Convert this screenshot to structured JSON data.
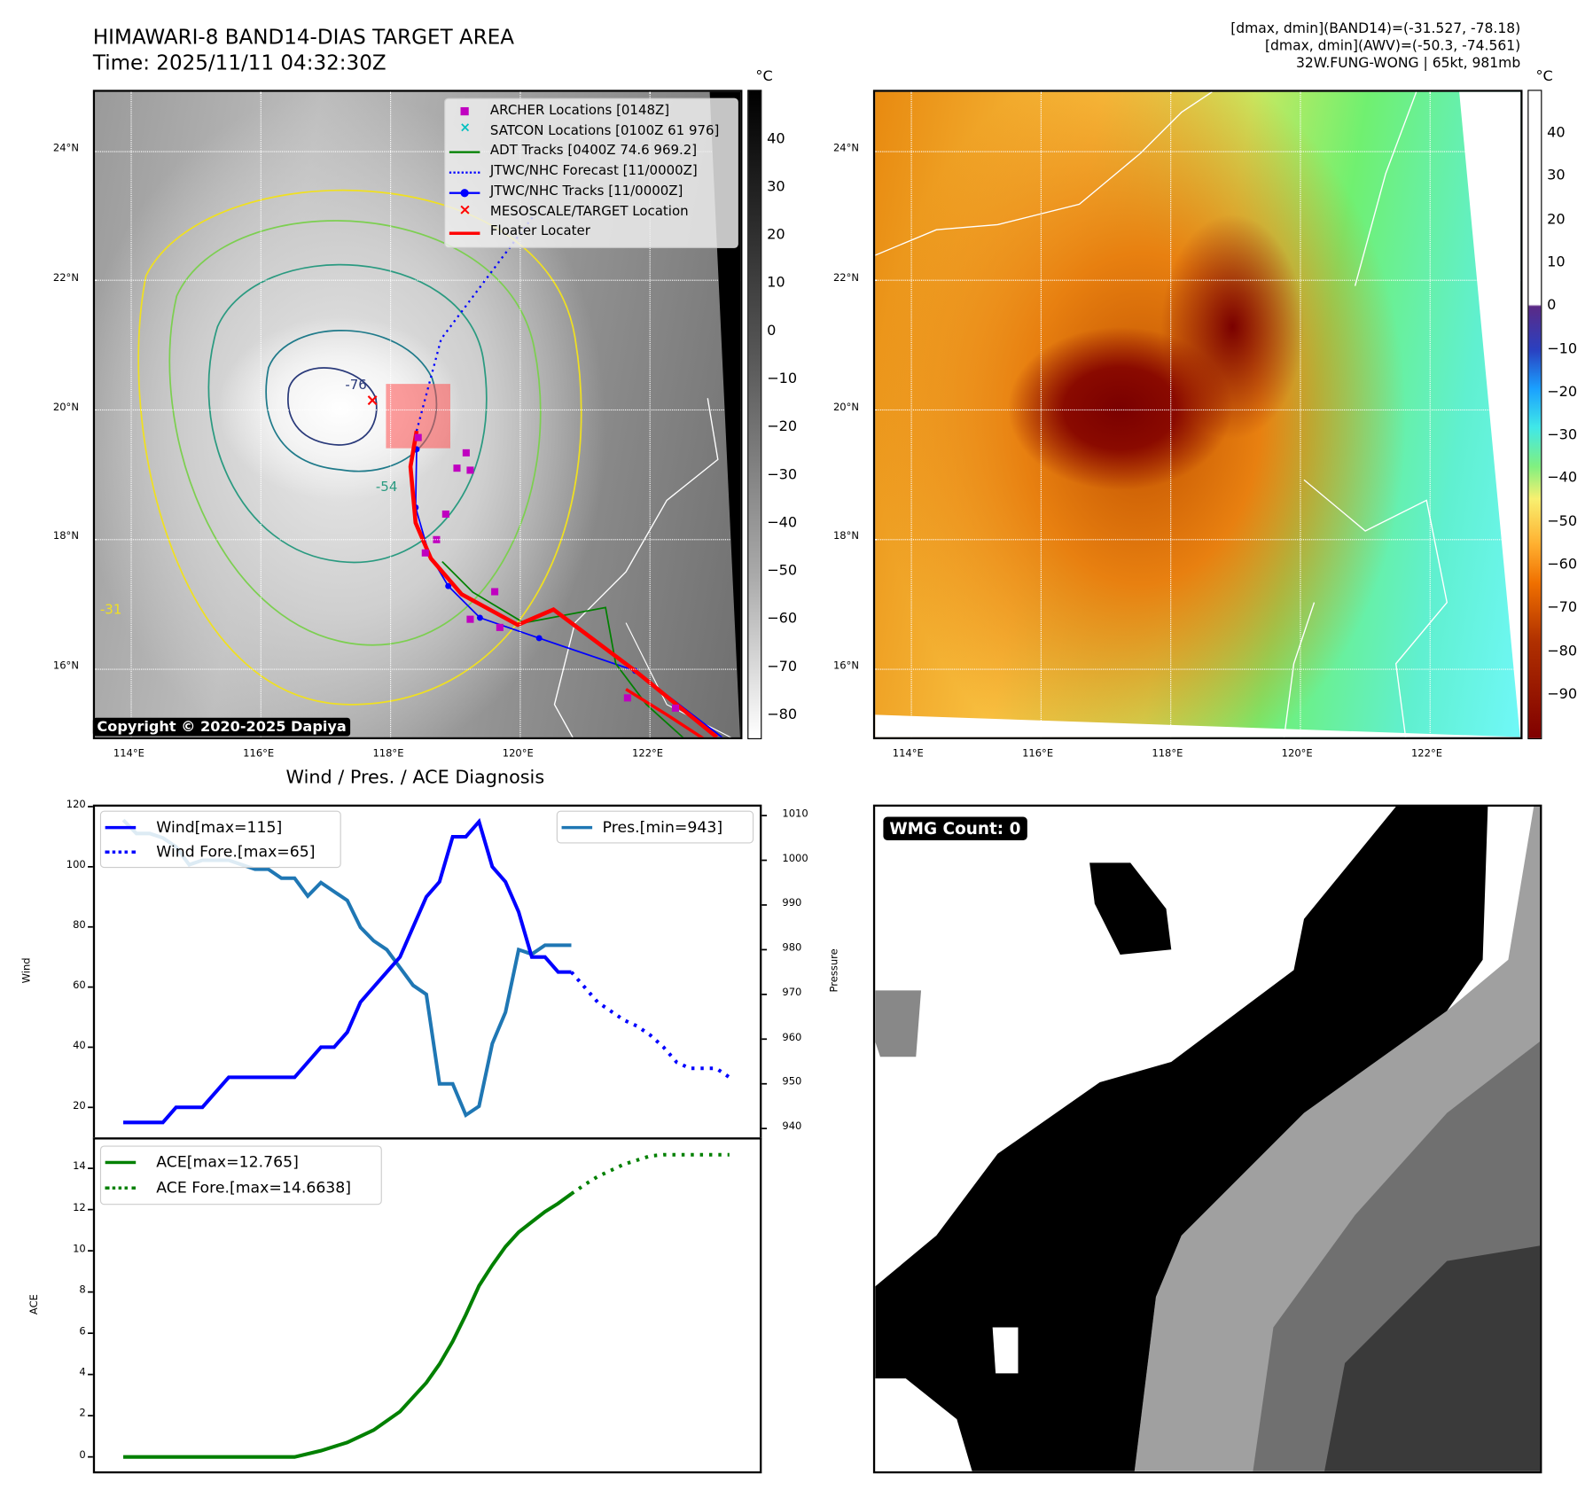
{
  "header": {
    "title": "HIMAWARI-8 BAND14-DIAS TARGET AREA",
    "time": "Time: 2025/11/11 04:32:30Z",
    "info_line1": "[dmax, dmin](BAND14)=(-31.527, -78.18)",
    "info_line2": "[dmax, dmin](AWV)=(-50.3, -74.561)",
    "info_line3": "32W.FUNG-WONG | 65kt, 981mb"
  },
  "maps": {
    "lat_labels": [
      "24°N",
      "22°N",
      "20°N",
      "18°N",
      "16°N"
    ],
    "lon_labels": [
      "114°E",
      "116°E",
      "118°E",
      "120°E",
      "122°E"
    ],
    "colorbar_unit": "°C",
    "left_colorbar_ticks": [
      "40",
      "30",
      "20",
      "10",
      "0",
      "−10",
      "−20",
      "−30",
      "−40",
      "−50",
      "−60",
      "−70",
      "−80"
    ],
    "right_colorbar_ticks": [
      "40",
      "30",
      "20",
      "10",
      "0",
      "−10",
      "−20",
      "−30",
      "−40",
      "−50",
      "−60",
      "−70",
      "−80",
      "−90"
    ],
    "copyright": "Copyright © 2020-2025 Dapiya",
    "contour_labels": [
      "-76",
      "-54",
      "-31"
    ],
    "legend": [
      {
        "label": "ARCHER Locations [0148Z]",
        "color": "#c000c0",
        "symbol": "square"
      },
      {
        "label": "SATCON Locations [0100Z 61 976]",
        "color": "#00c0c0",
        "symbol": "x"
      },
      {
        "label": "ADT Tracks [0400Z 74.6 969.2]",
        "color": "#008000",
        "symbol": "line"
      },
      {
        "label": "JTWC/NHC Forecast [11/0000Z]",
        "color": "#0000ff",
        "symbol": "dotted"
      },
      {
        "label": "JTWC/NHC Tracks [11/0000Z]",
        "color": "#0000ff",
        "symbol": "line-dot"
      },
      {
        "label": "MESOSCALE/TARGET Location",
        "color": "#ff0000",
        "symbol": "x"
      },
      {
        "label": "Floater Locater",
        "color": "#ff0000",
        "symbol": "line"
      }
    ]
  },
  "chart_data": [
    {
      "type": "line",
      "title": "Wind / Pres. / ACE Diagnosis",
      "ylabel": "Wind",
      "y2label": "Pressure",
      "ylim": [
        10,
        120
      ],
      "y2lim": [
        938,
        1012
      ],
      "xlim": [
        -2.15,
        48.3
      ],
      "yticks": [
        "20",
        "40",
        "60",
        "80",
        "100",
        "120"
      ],
      "y2ticks": [
        "940",
        "950",
        "960",
        "970",
        "980",
        "990",
        "1000",
        "1010"
      ],
      "series": [
        {
          "name": "Wind[max=115]",
          "color": "#0000ff",
          "style": "solid",
          "axis": "left",
          "points": [
            [
              0,
              15
            ],
            [
              3,
              15
            ],
            [
              4,
              20
            ],
            [
              6,
              20
            ],
            [
              8,
              30
            ],
            [
              13,
              30
            ],
            [
              15,
              40
            ],
            [
              16,
              40
            ],
            [
              17,
              45
            ],
            [
              18,
              55
            ],
            [
              19,
              60
            ],
            [
              20,
              65
            ],
            [
              21,
              70
            ],
            [
              22,
              80
            ],
            [
              23,
              90
            ],
            [
              24,
              95
            ],
            [
              25,
              110
            ],
            [
              26,
              110
            ],
            [
              27,
              115
            ],
            [
              28,
              100
            ],
            [
              29,
              95
            ],
            [
              30,
              85
            ],
            [
              31,
              70
            ],
            [
              32,
              70
            ],
            [
              33,
              65
            ],
            [
              34,
              65
            ]
          ]
        },
        {
          "name": "Wind Fore.[max=65]",
          "color": "#0000ff",
          "style": "dotted",
          "axis": "left",
          "points": [
            [
              34,
              65
            ],
            [
              35,
              60
            ],
            [
              36,
              55
            ],
            [
              37,
              52
            ],
            [
              38,
              49
            ],
            [
              39,
              47
            ],
            [
              40,
              44
            ],
            [
              41,
              40
            ],
            [
              42,
              35
            ],
            [
              43,
              33
            ],
            [
              44,
              33
            ],
            [
              45,
              33
            ],
            [
              46,
              30
            ]
          ]
        },
        {
          "name": "Pres.[min=943]",
          "color": "#1f77b4",
          "style": "solid",
          "axis": "right",
          "points": [
            [
              0,
              1009
            ],
            [
              1,
              1006
            ],
            [
              2,
              1006
            ],
            [
              3,
              1005
            ],
            [
              4,
              1003
            ],
            [
              5,
              999
            ],
            [
              6,
              1000
            ],
            [
              7,
              1000
            ],
            [
              8,
              1000
            ],
            [
              9,
              999
            ],
            [
              10,
              998
            ],
            [
              11,
              998
            ],
            [
              12,
              996
            ],
            [
              13,
              996
            ],
            [
              14,
              992
            ],
            [
              15,
              995
            ],
            [
              16,
              993
            ],
            [
              17,
              991
            ],
            [
              18,
              985
            ],
            [
              19,
              982
            ],
            [
              20,
              980
            ],
            [
              21,
              976
            ],
            [
              22,
              972
            ],
            [
              23,
              970
            ],
            [
              24,
              950
            ],
            [
              25,
              950
            ],
            [
              26,
              943
            ],
            [
              27,
              945
            ],
            [
              28,
              959
            ],
            [
              29,
              966
            ],
            [
              30,
              980
            ],
            [
              31,
              979
            ],
            [
              32,
              981
            ],
            [
              34,
              981
            ]
          ]
        }
      ]
    },
    {
      "type": "line",
      "ylabel": "ACE",
      "ylim": [
        -0.7,
        15.4
      ],
      "xlim": [
        -2.15,
        48.3
      ],
      "yticks": [
        "0",
        "2",
        "4",
        "6",
        "8",
        "10",
        "12",
        "14"
      ],
      "series": [
        {
          "name": "ACE[max=12.765]",
          "color": "#008000",
          "style": "solid",
          "points": [
            [
              0,
              0
            ],
            [
              13,
              0
            ],
            [
              15,
              0.3
            ],
            [
              17,
              0.7
            ],
            [
              19,
              1.3
            ],
            [
              21,
              2.2
            ],
            [
              22,
              2.9
            ],
            [
              23,
              3.6
            ],
            [
              24,
              4.5
            ],
            [
              25,
              5.6
            ],
            [
              26,
              6.9
            ],
            [
              27,
              8.3
            ],
            [
              28,
              9.3
            ],
            [
              29,
              10.2
            ],
            [
              30,
              10.9
            ],
            [
              31,
              11.4
            ],
            [
              32,
              11.9
            ],
            [
              33,
              12.3
            ],
            [
              34,
              12.765
            ]
          ]
        },
        {
          "name": "ACE Fore.[max=14.6638]",
          "color": "#008000",
          "style": "dotted",
          "points": [
            [
              34,
              12.765
            ],
            [
              35,
              13.2
            ],
            [
              36,
              13.6
            ],
            [
              37,
              13.9
            ],
            [
              38,
              14.2
            ],
            [
              39,
              14.4
            ],
            [
              40,
              14.6
            ],
            [
              41,
              14.66
            ],
            [
              46,
              14.66
            ]
          ]
        }
      ]
    }
  ],
  "wmg": {
    "label": "WMG Count: 0"
  }
}
